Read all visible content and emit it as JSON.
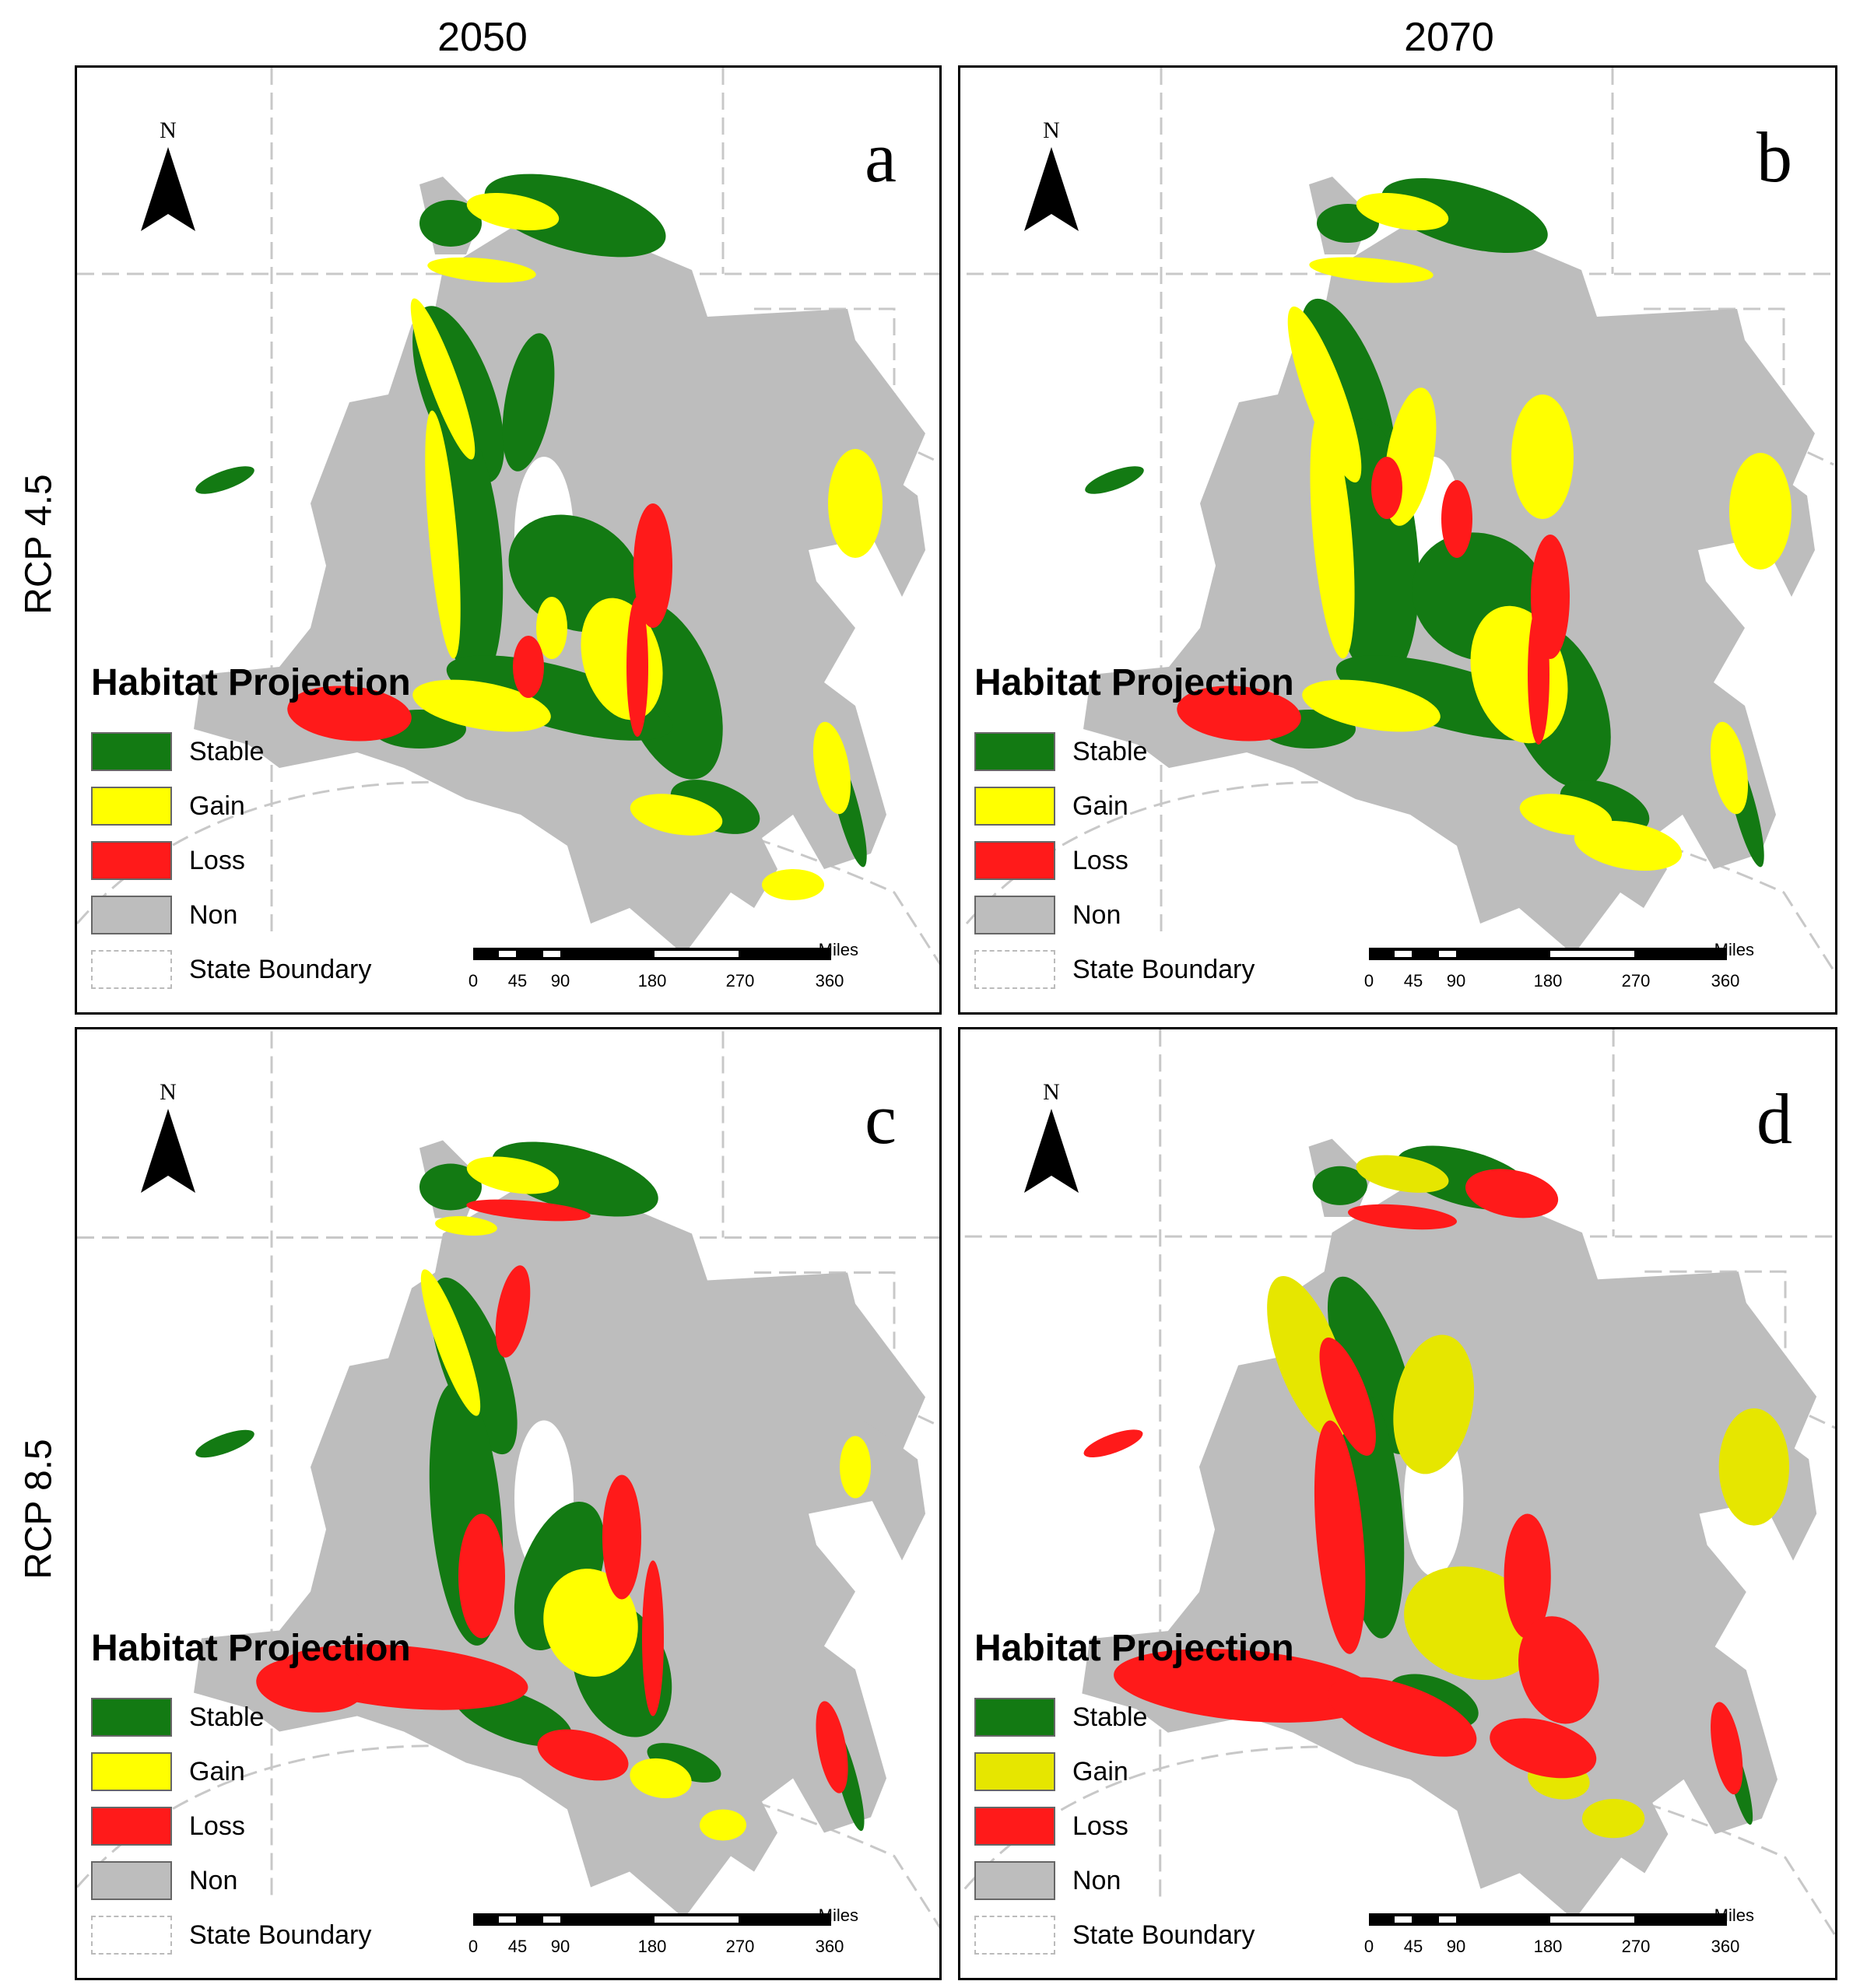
{
  "columns": [
    "2050",
    "2070"
  ],
  "rows": [
    "RCP 4.5",
    "RCP 8.5"
  ],
  "panels": [
    {
      "letter": "a",
      "variant": "a"
    },
    {
      "letter": "b",
      "variant": "b"
    },
    {
      "letter": "c",
      "variant": "c"
    },
    {
      "letter": "d",
      "variant": "d"
    }
  ],
  "north_label": "N",
  "legend": {
    "title": "Habitat Projection",
    "items": [
      {
        "label": "Stable",
        "color": "#137a13"
      },
      {
        "label": "Gain",
        "color": "#ffff00"
      },
      {
        "label": "Loss",
        "color": "#ff1a1a"
      },
      {
        "label": "Non",
        "color": "#bdbdbd"
      },
      {
        "label": "State Boundary",
        "color": "dashed"
      }
    ]
  },
  "scale": {
    "unit": "Miles",
    "ticks": [
      "0",
      "45",
      "90",
      "180",
      "270",
      "360"
    ]
  },
  "colors": {
    "stable": "#137a13",
    "gain": "#ffff00",
    "gain_alt": "#e6e600",
    "loss": "#ff1a1a",
    "non": "#bdbdbd",
    "boundary": "#c8c8c8"
  }
}
